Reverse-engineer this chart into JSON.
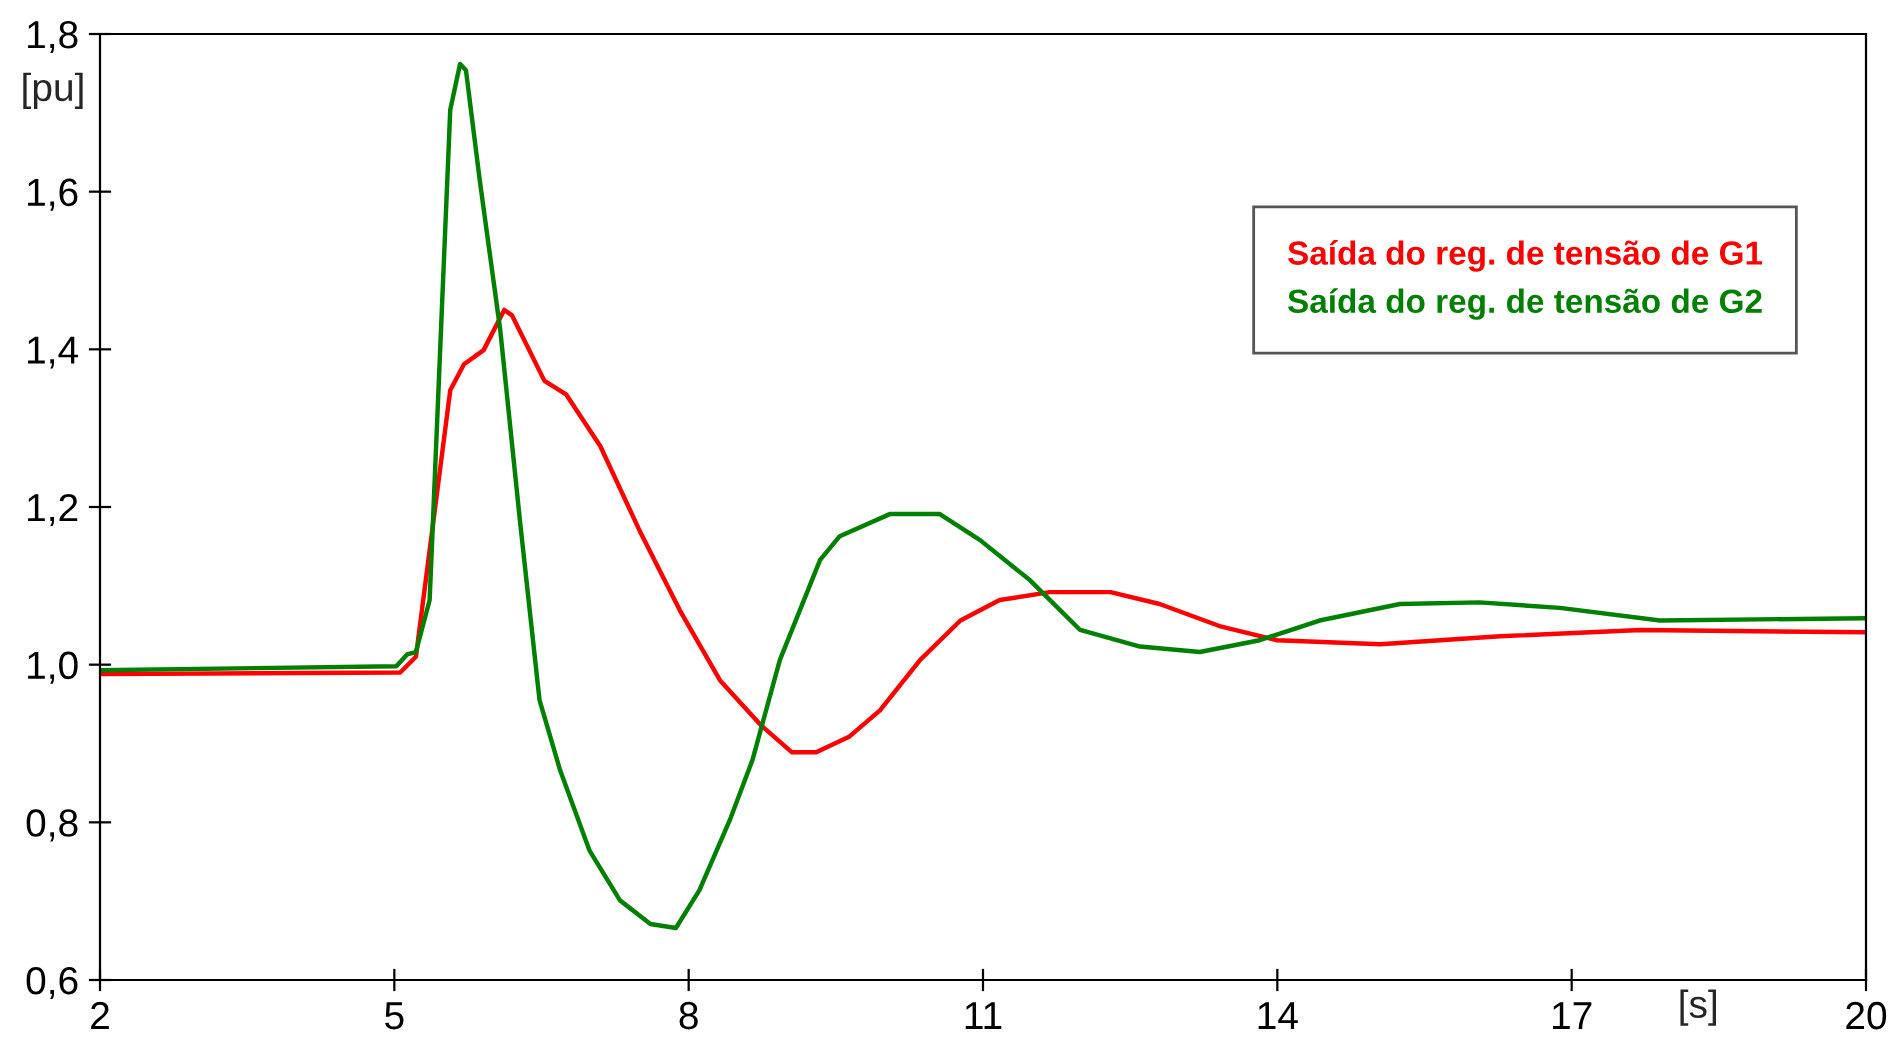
{
  "chart_data": {
    "type": "line",
    "xlabel": "[s]",
    "ylabel": "[pu]",
    "xlim": [
      2,
      20
    ],
    "xticks": [
      2,
      5,
      8,
      11,
      14,
      17,
      20
    ],
    "ylim": [
      0.6,
      1.8
    ],
    "yticks": [
      {
        "value": 0.6,
        "label": "0,6"
      },
      {
        "value": 0.8,
        "label": "0,8"
      },
      {
        "value": 1.0,
        "label": "1,0"
      },
      {
        "value": 1.2,
        "label": "1,2"
      },
      {
        "value": 1.4,
        "label": "1,4"
      },
      {
        "value": 1.6,
        "label": "1,6"
      },
      {
        "value": 1.8,
        "label": "1,8"
      }
    ],
    "grid": false,
    "legend": "right",
    "series": [
      {
        "name": "Saída do reg. de tensão de G1",
        "color": "#ff0000",
        "x": [
          2,
          5.06,
          5.22,
          5.57,
          5.71,
          5.91,
          6.12,
          6.2,
          6.53,
          6.75,
          7.1,
          7.5,
          7.91,
          8.32,
          8.73,
          9.05,
          9.3,
          9.64,
          9.95,
          10.36,
          10.77,
          11.17,
          11.68,
          12.3,
          12.8,
          13.41,
          14.0,
          15.05,
          16.27,
          17.7,
          20
        ],
        "values": [
          0.988,
          0.99,
          1.01,
          1.348,
          1.381,
          1.399,
          1.45,
          1.443,
          1.36,
          1.343,
          1.277,
          1.17,
          1.069,
          0.98,
          0.924,
          0.889,
          0.889,
          0.909,
          0.942,
          1.006,
          1.056,
          1.082,
          1.092,
          1.092,
          1.077,
          1.049,
          1.031,
          1.026,
          1.036,
          1.044,
          1.041
        ]
      },
      {
        "name": "Saída do reg. de tensão de G2",
        "color": "#008000",
        "x": [
          2,
          5.02,
          5.13,
          5.22,
          5.36,
          5.57,
          5.67,
          5.73,
          5.87,
          6.08,
          6.28,
          6.48,
          6.69,
          6.99,
          7.3,
          7.61,
          7.87,
          8.11,
          8.42,
          8.65,
          8.93,
          9.34,
          9.54,
          10.05,
          10.56,
          10.97,
          11.48,
          11.99,
          12.6,
          13.21,
          13.82,
          14.43,
          15.25,
          16.06,
          16.88,
          17.9,
          20
        ],
        "values": [
          0.993,
          0.998,
          1.013,
          1.016,
          1.082,
          1.704,
          1.762,
          1.754,
          1.615,
          1.424,
          1.183,
          0.955,
          0.866,
          0.764,
          0.701,
          0.671,
          0.666,
          0.714,
          0.803,
          0.879,
          1.006,
          1.133,
          1.163,
          1.191,
          1.191,
          1.158,
          1.107,
          1.044,
          1.023,
          1.016,
          1.031,
          1.056,
          1.077,
          1.079,
          1.072,
          1.056,
          1.059
        ]
      }
    ]
  }
}
